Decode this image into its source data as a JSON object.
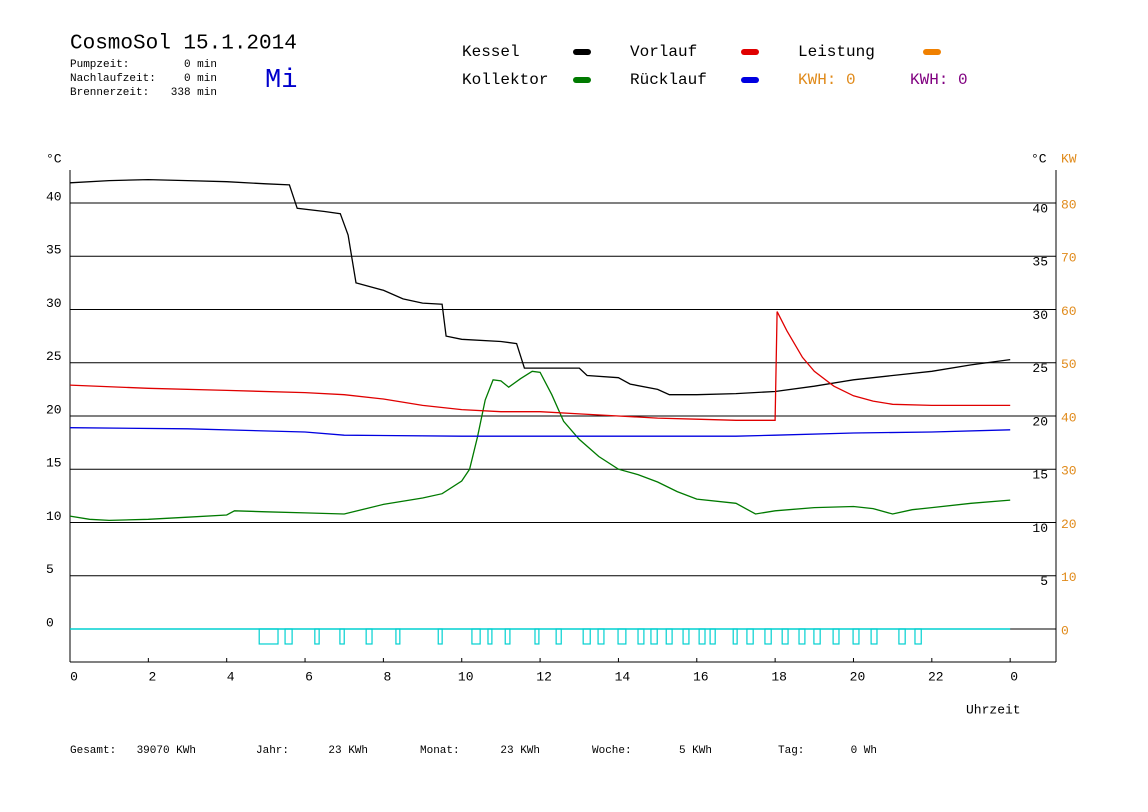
{
  "chart_data": {
    "type": "line",
    "title": "CosmoSol 15.1.2014",
    "day": "Mi",
    "stats": [
      {
        "label": "Pumpzeit:",
        "value": "0 min"
      },
      {
        "label": "Nachlaufzeit:",
        "value": "0 min"
      },
      {
        "label": "Brennerzeit:",
        "value": "338 min"
      }
    ],
    "y_unit_left": "°C",
    "y_unit_right": "°C",
    "y2_unit": "KW",
    "xlabel": "Uhrzeit",
    "xlim": [
      0,
      25.17
    ],
    "xticks": [
      0,
      2,
      4,
      6,
      8,
      10,
      12,
      14,
      16,
      18,
      20,
      22,
      {
        "value": 24,
        "label": "0"
      }
    ],
    "ylim": [
      -3.1,
      43.1
    ],
    "yticks": [
      0,
      5,
      10,
      15,
      20,
      25,
      30,
      35,
      40
    ],
    "yticks_right": [
      5,
      10,
      15,
      20,
      25,
      30,
      35,
      40
    ],
    "y2lim": [
      -6.2,
      86.2
    ],
    "y2ticks": [
      0,
      10,
      20,
      30,
      40,
      50,
      60,
      70,
      80
    ],
    "y2_color": "#e08a1a",
    "grid": true,
    "series": [
      {
        "name": "Kessel",
        "color": "#000000",
        "x": [
          0,
          1,
          2,
          3,
          4,
          5,
          5.6,
          5.8,
          6.5,
          6.9,
          7.1,
          7.3,
          8,
          8.5,
          9,
          9.5,
          9.6,
          10,
          11,
          11.4,
          11.6,
          12,
          13,
          13.2,
          14,
          14.3,
          15,
          15.3,
          16,
          17,
          18,
          19,
          20,
          21,
          22,
          23,
          24
        ],
        "values": [
          41.9,
          42.1,
          42.2,
          42.1,
          42,
          41.8,
          41.7,
          39.5,
          39.2,
          39,
          37,
          32.5,
          31.8,
          31,
          30.6,
          30.5,
          27.5,
          27.2,
          27,
          26.8,
          24.5,
          24.5,
          24.5,
          23.8,
          23.6,
          23,
          22.5,
          22,
          22,
          22.1,
          22.3,
          22.8,
          23.4,
          23.8,
          24.2,
          24.8,
          25.3
        ]
      },
      {
        "name": "Kollektor",
        "color": "#007a00",
        "x": [
          0,
          0.5,
          1,
          2,
          3,
          4,
          4.2,
          5,
          6,
          7,
          8,
          9,
          9.5,
          10,
          10.2,
          10.4,
          10.6,
          10.8,
          11,
          11.2,
          11.5,
          11.8,
          12,
          12.3,
          12.6,
          13,
          13.5,
          14,
          14.5,
          15,
          15.5,
          16,
          17,
          17.5,
          18,
          19,
          20,
          20.5,
          21,
          21.5,
          22,
          23,
          24
        ],
        "values": [
          10.6,
          10.3,
          10.2,
          10.3,
          10.5,
          10.7,
          11.1,
          11,
          10.9,
          10.8,
          11.7,
          12.3,
          12.7,
          13.9,
          15,
          18,
          21.5,
          23.4,
          23.3,
          22.7,
          23.5,
          24.2,
          24.1,
          22,
          19.5,
          17.8,
          16.2,
          15,
          14.5,
          13.8,
          12.9,
          12.2,
          11.8,
          10.8,
          11.1,
          11.4,
          11.5,
          11.3,
          10.8,
          11.2,
          11.4,
          11.8,
          12.1
        ]
      },
      {
        "name": "Vorlauf",
        "color": "#e00000",
        "x": [
          0,
          2,
          4,
          6,
          7,
          8,
          9,
          10,
          11,
          12,
          13,
          14,
          15,
          16,
          17,
          18,
          18.05,
          18.3,
          18.7,
          19,
          19.5,
          20,
          20.5,
          21,
          22,
          24
        ],
        "values": [
          22.9,
          22.6,
          22.4,
          22.2,
          22,
          21.6,
          21,
          20.6,
          20.4,
          20.4,
          20.2,
          20,
          19.8,
          19.7,
          19.6,
          19.6,
          29.8,
          28,
          25.5,
          24.2,
          22.8,
          21.9,
          21.4,
          21.1,
          21,
          21
        ]
      },
      {
        "name": "Rücklauf",
        "color": "#0000e0",
        "x": [
          0,
          3,
          6,
          7,
          10,
          14,
          17,
          18,
          20,
          22,
          24
        ],
        "values": [
          18.9,
          18.8,
          18.5,
          18.2,
          18.1,
          18.1,
          18.1,
          18.2,
          18.4,
          18.5,
          18.7
        ]
      }
    ],
    "power": {
      "name": "Leistung",
      "color": "#f08000"
    },
    "kwh": [
      {
        "label": "KWH: 0",
        "color": "#e08a1a"
      },
      {
        "label": "KWH: 0",
        "color": "#800080"
      }
    ],
    "pump_color": "#00d0d0",
    "pump_intervals": [
      [
        4.83,
        5.31
      ],
      [
        5.49,
        5.67
      ],
      [
        6.25,
        6.36
      ],
      [
        6.89,
        7.0
      ],
      [
        7.56,
        7.71
      ],
      [
        8.32,
        8.42
      ],
      [
        9.4,
        9.5
      ],
      [
        10.26,
        10.47
      ],
      [
        10.67,
        10.77
      ],
      [
        11.11,
        11.23
      ],
      [
        11.87,
        11.97
      ],
      [
        12.41,
        12.54
      ],
      [
        13.1,
        13.28
      ],
      [
        13.48,
        13.63
      ],
      [
        13.99,
        14.19
      ],
      [
        14.5,
        14.65
      ],
      [
        14.83,
        14.99
      ],
      [
        15.22,
        15.37
      ],
      [
        15.65,
        15.8
      ],
      [
        16.06,
        16.21
      ],
      [
        16.34,
        16.47
      ],
      [
        16.93,
        17.03
      ],
      [
        17.28,
        17.44
      ],
      [
        17.74,
        17.9
      ],
      [
        18.18,
        18.33
      ],
      [
        18.61,
        18.76
      ],
      [
        18.99,
        19.15
      ],
      [
        19.48,
        19.63
      ],
      [
        19.99,
        20.14
      ],
      [
        20.45,
        20.6
      ],
      [
        21.16,
        21.32
      ],
      [
        21.57,
        21.73
      ]
    ],
    "footer": [
      {
        "label": "Gesamt:",
        "value": "39070 KWh"
      },
      {
        "label": "Jahr:",
        "value": "23 KWh"
      },
      {
        "label": "Monat:",
        "value": "23 KWh"
      },
      {
        "label": "Woche:",
        "value": "5 KWh"
      },
      {
        "label": "Tag:",
        "value": "0 Wh"
      }
    ]
  }
}
